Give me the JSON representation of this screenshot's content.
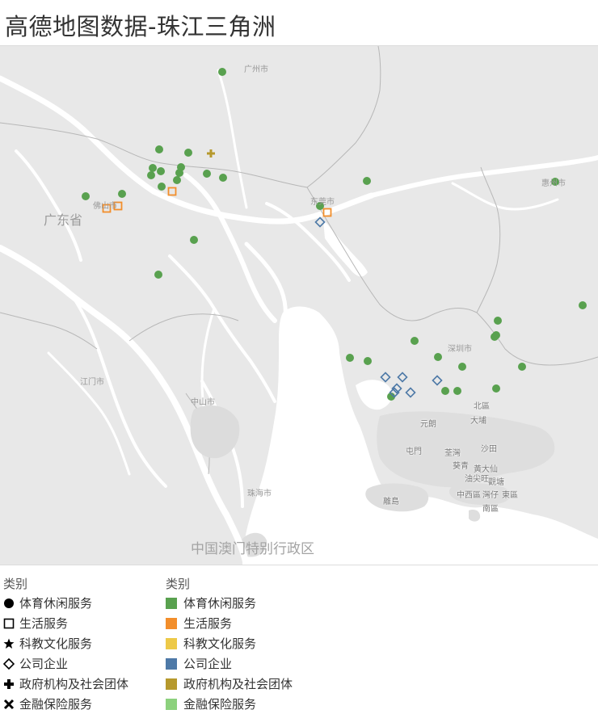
{
  "title": "高德地图数据-珠江三角洲",
  "map": {
    "background_color": "#e8e8e8",
    "water_color": "#ffffff",
    "park_color": "#dcdcdc",
    "city_labels": [
      {
        "name": "广州市"
      },
      {
        "name": "佛山市"
      },
      {
        "name": "东莞市"
      },
      {
        "name": "惠州市"
      },
      {
        "name": "深圳市"
      },
      {
        "name": "江门市"
      },
      {
        "name": "中山市"
      },
      {
        "name": "珠海市"
      }
    ],
    "province_label": "广东省",
    "sar_label": "中国澳门特别行政区",
    "hk_labels": [
      "元朗",
      "屯門",
      "荃灣",
      "葵青",
      "北區",
      "大埔",
      "沙田",
      "黃大仙",
      "觀塘",
      "油尖旺",
      "中西區",
      "灣仔",
      "東區",
      "南區",
      "離島"
    ]
  },
  "categories_colors": {
    "体育休闲服务": "#59a14f",
    "生活服务": "#f28e2b",
    "科教文化服务": "#edc948",
    "公司企业": "#4e79a7",
    "政府机构及社会团体": "#b6992d",
    "金融保险服务": "#8cd17d"
  },
  "points": [
    {
      "cat": "体育休闲服务",
      "shape": "circle"
    },
    {
      "cat": "体育休闲服务",
      "shape": "circle"
    },
    {
      "cat": "体育休闲服务",
      "shape": "circle"
    },
    {
      "cat": "体育休闲服务",
      "shape": "circle"
    },
    {
      "cat": "体育休闲服务",
      "shape": "circle"
    },
    {
      "cat": "体育休闲服务",
      "shape": "circle"
    },
    {
      "cat": "体育休闲服务",
      "shape": "circle"
    },
    {
      "cat": "体育休闲服务",
      "shape": "circle"
    },
    {
      "cat": "体育休闲服务",
      "shape": "circle"
    },
    {
      "cat": "体育休闲服务",
      "shape": "circle"
    },
    {
      "cat": "体育休闲服务",
      "shape": "circle"
    },
    {
      "cat": "体育休闲服务",
      "shape": "circle"
    },
    {
      "cat": "体育休闲服务",
      "shape": "circle"
    },
    {
      "cat": "体育休闲服务",
      "shape": "circle"
    },
    {
      "cat": "体育休闲服务",
      "shape": "circle"
    },
    {
      "cat": "体育休闲服务",
      "shape": "circle"
    },
    {
      "cat": "体育休闲服务",
      "shape": "circle"
    },
    {
      "cat": "体育休闲服务",
      "shape": "circle"
    },
    {
      "cat": "体育休闲服务",
      "shape": "circle"
    },
    {
      "cat": "体育休闲服务",
      "shape": "circle"
    },
    {
      "cat": "体育休闲服务",
      "shape": "circle"
    },
    {
      "cat": "体育休闲服务",
      "shape": "circle"
    },
    {
      "cat": "体育休闲服务",
      "shape": "circle"
    },
    {
      "cat": "体育休闲服务",
      "shape": "circle"
    },
    {
      "cat": "体育休闲服务",
      "shape": "circle"
    },
    {
      "cat": "体育休闲服务",
      "shape": "circle"
    },
    {
      "cat": "体育休闲服务",
      "shape": "circle"
    },
    {
      "cat": "体育休闲服务",
      "shape": "circle"
    },
    {
      "cat": "体育休闲服务",
      "shape": "circle"
    },
    {
      "cat": "体育休闲服务",
      "shape": "circle"
    },
    {
      "cat": "体育休闲服务",
      "shape": "circle"
    },
    {
      "cat": "体育休闲服务",
      "shape": "circle"
    },
    {
      "cat": "体育休闲服务",
      "shape": "circle"
    },
    {
      "cat": "生活服务",
      "shape": "square"
    },
    {
      "cat": "生活服务",
      "shape": "square"
    },
    {
      "cat": "生活服务",
      "shape": "square"
    },
    {
      "cat": "生活服务",
      "shape": "square"
    },
    {
      "cat": "政府机构及社会团体",
      "shape": "plus"
    },
    {
      "cat": "公司企业",
      "shape": "diamond"
    },
    {
      "cat": "公司企业",
      "shape": "diamond"
    },
    {
      "cat": "公司企业",
      "shape": "diamond"
    },
    {
      "cat": "公司企业",
      "shape": "diamond"
    },
    {
      "cat": "公司企业",
      "shape": "diamond"
    },
    {
      "cat": "公司企业",
      "shape": "diamond"
    },
    {
      "cat": "公司企业",
      "shape": "diamond"
    }
  ],
  "legend_shape": {
    "title": "类别",
    "items": [
      {
        "shape": "circle",
        "label": "体育休闲服务"
      },
      {
        "shape": "square",
        "label": "生活服务"
      },
      {
        "shape": "star",
        "label": "科教文化服务"
      },
      {
        "shape": "diamond",
        "label": "公司企业"
      },
      {
        "shape": "plus",
        "label": "政府机构及社会团体"
      },
      {
        "shape": "x",
        "label": "金融保险服务"
      }
    ]
  },
  "legend_color": {
    "title": "类别",
    "items": [
      {
        "color": "#59a14f",
        "label": "体育休闲服务"
      },
      {
        "color": "#f28e2b",
        "label": "生活服务"
      },
      {
        "color": "#edc948",
        "label": "科教文化服务"
      },
      {
        "color": "#4e79a7",
        "label": "公司企业"
      },
      {
        "color": "#b6992d",
        "label": "政府机构及社会团体"
      },
      {
        "color": "#8cd17d",
        "label": "金融保险服务"
      }
    ]
  }
}
